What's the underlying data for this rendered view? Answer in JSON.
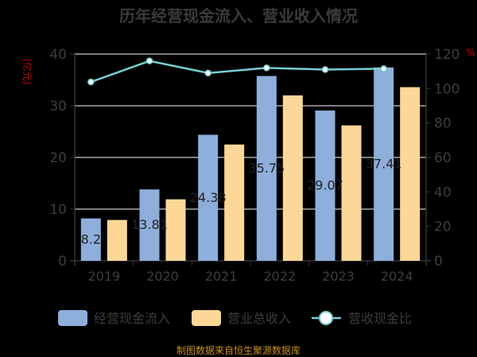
{
  "title": "历年经营现金流入、营业收入情况",
  "footer": "制图数据来自恒生聚源数据库",
  "colors": {
    "cash_inflow": "#8eaedb",
    "revenue": "#fdd797",
    "ratio": "#76cfd3",
    "axis_text": "#3d3d3d",
    "unit_text": "#cc0000",
    "grid": "#a8a8a8",
    "footer": "#c8901e"
  },
  "chart_data": {
    "type": "bar",
    "title": "历年经营现金流入、营业收入情况",
    "categories": [
      "2019",
      "2020",
      "2021",
      "2022",
      "2023",
      "2024"
    ],
    "series": [
      {
        "name": "经营现金流入",
        "type": "bar",
        "axis": "left",
        "values": [
          8.2,
          13.81,
          24.38,
          35.75,
          29.07,
          37.41
        ],
        "labels": [
          "8.2",
          "13.81",
          "24.38",
          "35.75",
          "29.07",
          "37.41"
        ]
      },
      {
        "name": "营业总收入",
        "type": "bar",
        "axis": "left",
        "values": [
          7.9,
          11.9,
          22.5,
          32.0,
          26.2,
          33.6
        ]
      },
      {
        "name": "营收现金比",
        "type": "line",
        "axis": "right",
        "values": [
          103.8,
          116.0,
          109.0,
          112.0,
          111.0,
          111.5
        ]
      }
    ],
    "ylabel_left": "(亿元)",
    "ylabel_right": "%",
    "ylim_left": [
      0,
      40
    ],
    "ylim_right": [
      0,
      120
    ],
    "yticks_left": [
      "0",
      "10",
      "20",
      "30",
      "40"
    ],
    "yticks_right": [
      "0",
      "20",
      "40",
      "60",
      "80",
      "100",
      "120"
    ],
    "grid": true,
    "legend_position": "bottom"
  },
  "legend": [
    {
      "label": "经营现金流入",
      "kind": "bar"
    },
    {
      "label": "营业总收入",
      "kind": "bar"
    },
    {
      "label": "营收现金比",
      "kind": "line"
    }
  ]
}
